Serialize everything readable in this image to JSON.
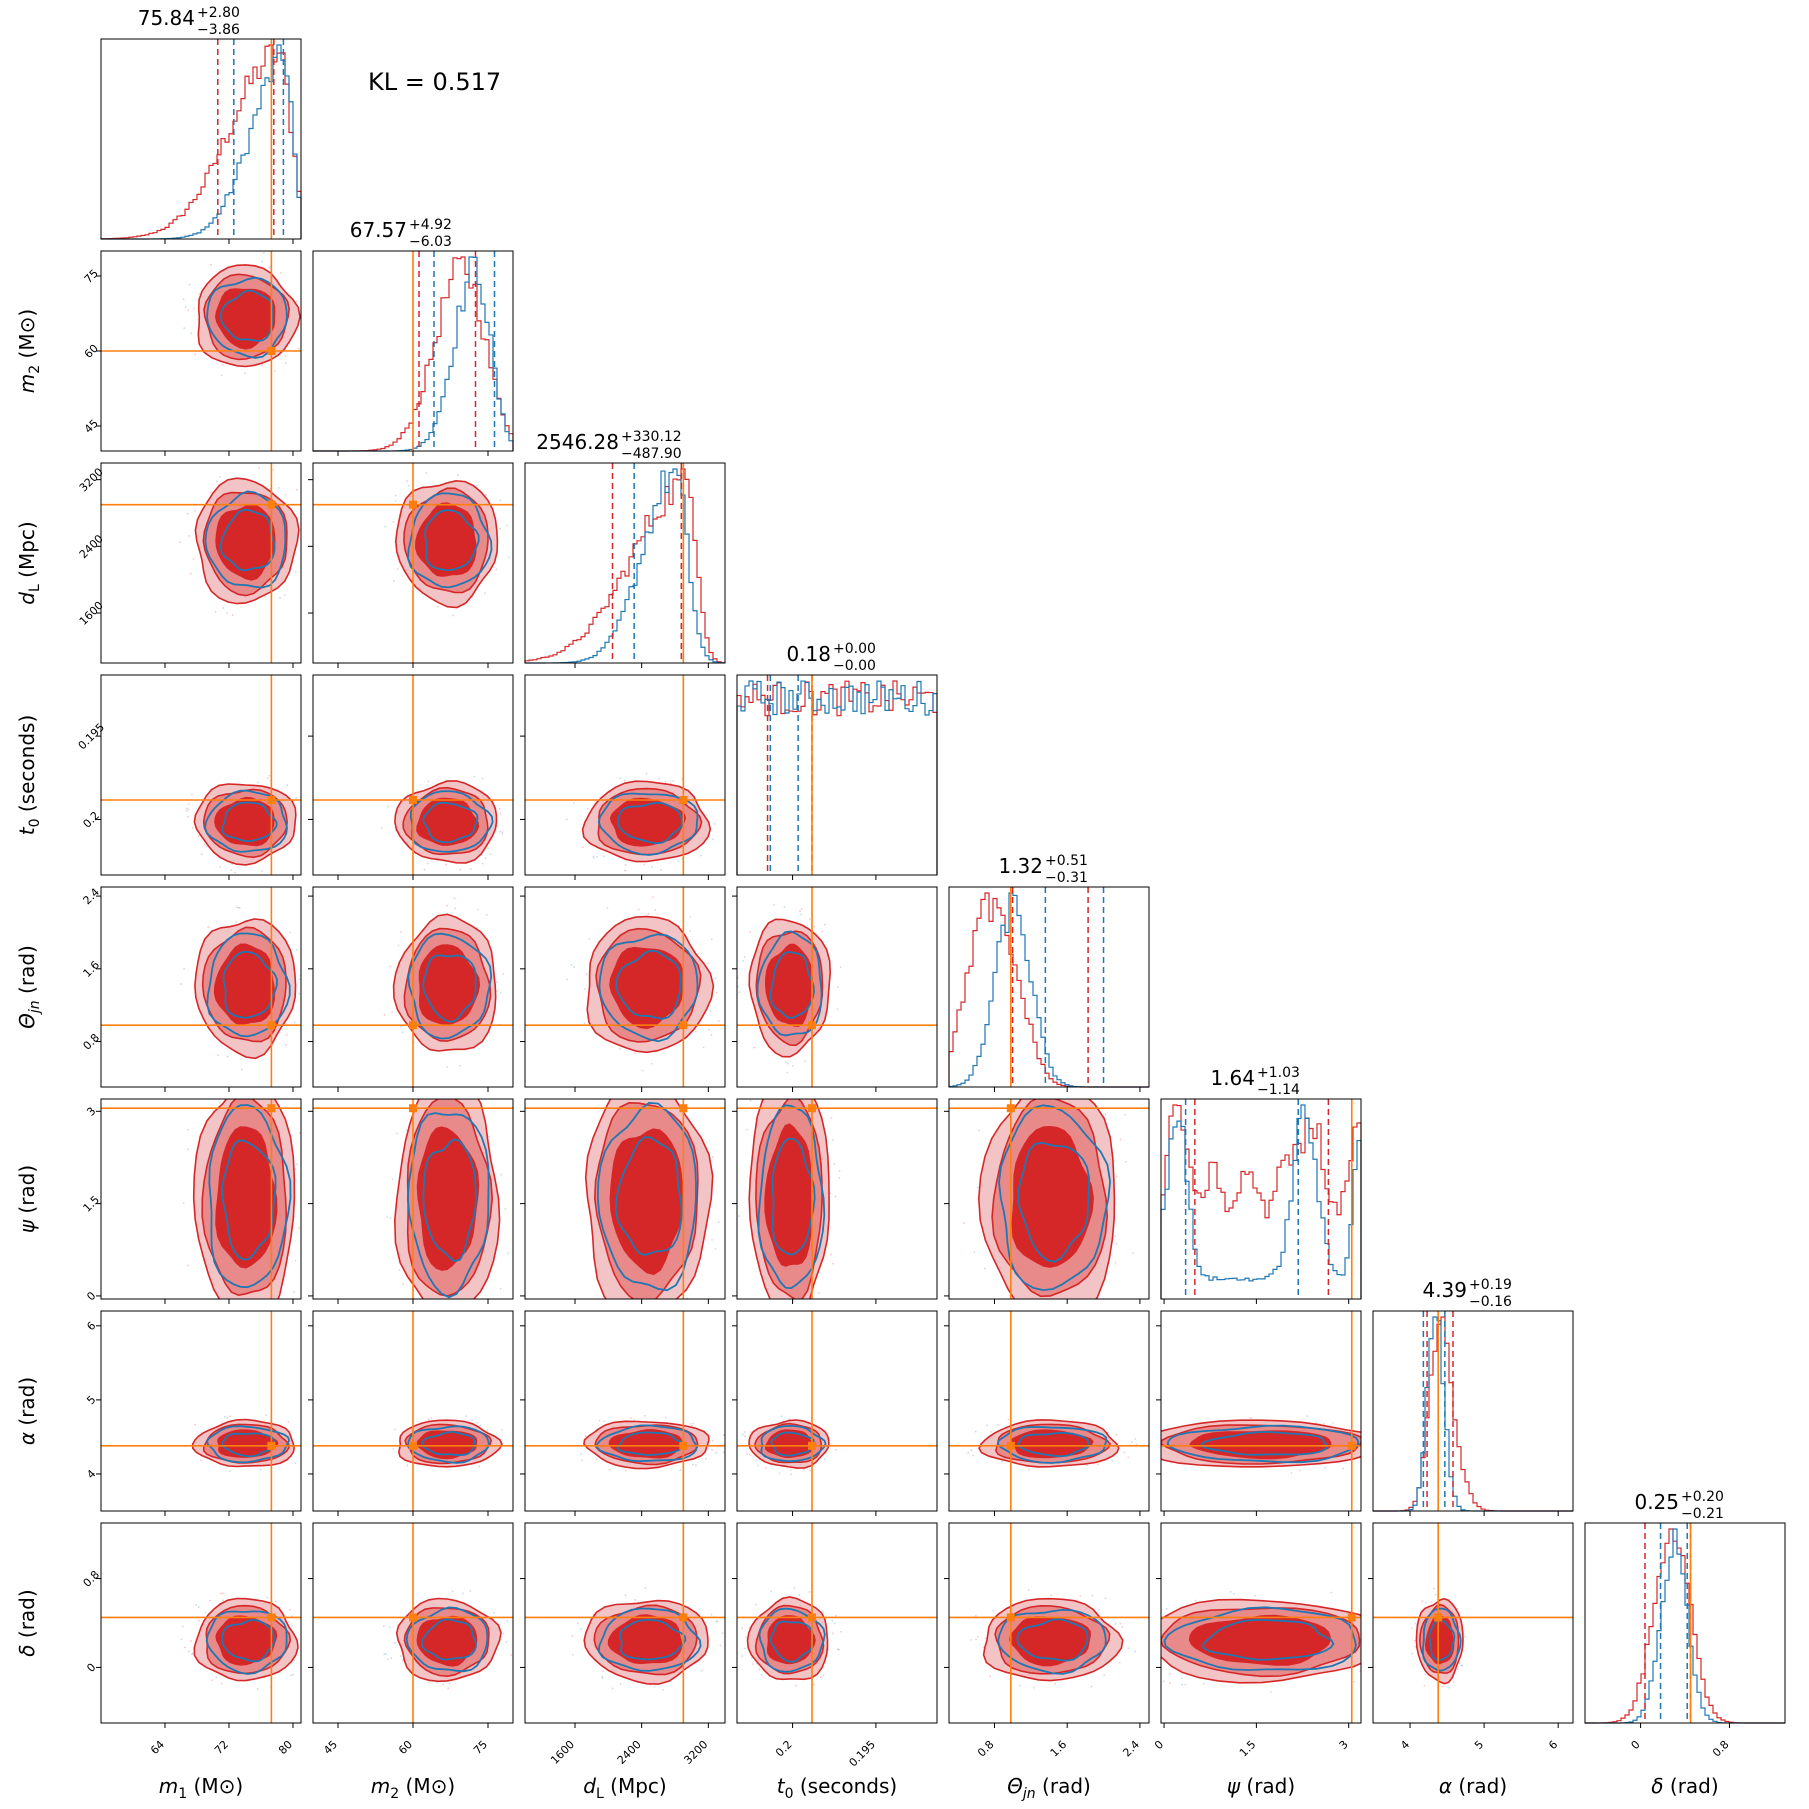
{
  "annotation": {
    "kl": "KL = 0.517"
  },
  "colors": {
    "series_a": "#d62728",
    "series_a_fill": "#e8898a",
    "series_a_fill_light": "#f3c4c5",
    "series_b": "#1f77b4",
    "truth": "#ff7f0e"
  },
  "chart_data": {
    "type": "corner",
    "n_params": 8,
    "params": [
      {
        "label": "m1 (M⊙)",
        "sym": "m",
        "sub": "1",
        "unit": "(M⊙)",
        "range": [
          56,
          81
        ],
        "ticks": [
          64,
          72,
          80
        ],
        "truth": 77.3,
        "summary": {
          "median": "75.84",
          "plus": "+2.80",
          "minus": "−3.86"
        },
        "q_a": [
          70.6,
          77.6
        ],
        "q_b": [
          72.6,
          78.8
        ],
        "hist_a": {
          "peak": 78.2,
          "w_left": 6.0,
          "w_right": 1.6,
          "floor": 0
        },
        "hist_b": {
          "peak": 79.0,
          "w_left": 4.2,
          "w_right": 1.0,
          "floor": 0
        }
      },
      {
        "label": "m2 (M⊙)",
        "sym": "m",
        "sub": "2",
        "unit": "(M⊙)",
        "range": [
          40,
          80
        ],
        "ticks": [
          45,
          60,
          75
        ],
        "truth": 60.0,
        "summary": {
          "median": "67.57",
          "plus": "+4.92",
          "minus": "−6.03"
        },
        "q_a": [
          61.2,
          72.5
        ],
        "q_b": [
          64.2,
          76.3
        ],
        "hist_a": {
          "peak": 70.0,
          "w_left": 5.5,
          "w_right": 4.5,
          "floor": 0
        },
        "hist_b": {
          "peak": 72.5,
          "w_left": 4.2,
          "w_right": 3.0,
          "floor": 0
        }
      },
      {
        "label": "dL (Mpc)",
        "sym": "d",
        "sub": "L",
        "unit": "(Mpc)",
        "range": [
          1000,
          3400
        ],
        "ticks": [
          1600,
          2400,
          3200
        ],
        "truth": 2900,
        "summary": {
          "median": "2546.28",
          "plus": "+330.12",
          "minus": "−487.90"
        },
        "q_a": [
          2050,
          2876
        ],
        "q_b": [
          2310,
          2900
        ],
        "hist_a": {
          "peak": 2950,
          "w_left": 650,
          "w_right": 120,
          "floor": 0
        },
        "hist_b": {
          "peak": 2800,
          "w_left": 380,
          "w_right": 150,
          "floor": 0
        }
      },
      {
        "label": "t0 (seconds)",
        "sym": "t",
        "sub": "0",
        "unit": "(seconds)",
        "range": [
          0.17,
          0.206
        ],
        "ticks": [
          0.18,
          0.195
        ],
        "truth": 0.1835,
        "summary": {
          "median": "0.18",
          "plus": "+0.00",
          "minus": "−0.00"
        },
        "q_a": [
          0.1755,
          0.1835
        ],
        "q_b": [
          0.176,
          0.181
        ],
        "hist_a": {
          "peak": 0.178,
          "w_left": 1.4,
          "w_right": 3.0,
          "floor": 0,
          "tail": true
        },
        "hist_b": {
          "peak": 0.178,
          "w_left": 1.3,
          "w_right": 1.8,
          "floor": 0
        }
      },
      {
        "label": "Θjn (rad)",
        "sym": "Θ",
        "sub": "jn",
        "unit": "(rad)",
        "range": [
          0.3,
          2.5
        ],
        "ticks": [
          0.8,
          1.6,
          2.4
        ],
        "truth": 0.98,
        "summary": {
          "median": "1.32",
          "plus": "+0.51",
          "minus": "−0.31"
        },
        "q_a": [
          1.0,
          1.83
        ],
        "q_b": [
          1.36,
          2.0
        ],
        "hist_a": {
          "bimodal": [
            0.75,
            1.05,
            0.18,
            1.95,
            0.7,
            0.22
          ]
        },
        "hist_b": {
          "bimodal": [
            0.25,
            1.05,
            0.18,
            1.95,
            1.0,
            0.2
          ]
        }
      },
      {
        "label": "ψ (rad)",
        "sym": "ψ",
        "sub": "",
        "unit": "(rad)",
        "range": [
          -0.05,
          3.2
        ],
        "ticks": [
          0.0,
          1.5,
          3.0
        ],
        "truth": 3.05,
        "summary": {
          "median": "1.64",
          "plus": "+1.03",
          "minus": "−1.14"
        },
        "q_a": [
          0.5,
          2.67
        ],
        "q_b": [
          0.35,
          2.18
        ],
        "hist_a": {
          "flat": 0.55
        },
        "hist_b": {
          "flat": 0.0
        }
      },
      {
        "label": "α (rad)",
        "sym": "α",
        "sub": "",
        "unit": "(rad)",
        "range": [
          3.5,
          6.2
        ],
        "ticks": [
          4,
          5,
          6
        ],
        "truth": 4.38,
        "summary": {
          "median": "4.39",
          "plus": "+0.19",
          "minus": "−0.16"
        },
        "q_a": [
          4.23,
          4.58
        ],
        "q_b": [
          4.18,
          4.47
        ],
        "hist_a": {
          "peak": 4.38,
          "w_left": 0.13,
          "w_right": 0.2,
          "floor": 0
        },
        "hist_b": {
          "peak": 4.33,
          "w_left": 0.1,
          "w_right": 0.12,
          "floor": 0
        }
      },
      {
        "label": "δ (rad)",
        "sym": "δ",
        "sub": "",
        "unit": "(rad)",
        "range": [
          -0.5,
          1.3
        ],
        "ticks": [
          0.0,
          0.8
        ],
        "truth": 0.45,
        "summary": {
          "median": "0.25",
          "plus": "+0.20",
          "minus": "−0.21"
        },
        "q_a": [
          0.04,
          0.45
        ],
        "q_b": [
          0.18,
          0.42
        ],
        "hist_a": {
          "peak": 0.28,
          "w_left": 0.16,
          "w_right": 0.16,
          "floor": 0
        },
        "hist_b": {
          "peak": 0.3,
          "w_left": 0.12,
          "w_right": 0.12,
          "floor": 0
        }
      }
    ]
  }
}
